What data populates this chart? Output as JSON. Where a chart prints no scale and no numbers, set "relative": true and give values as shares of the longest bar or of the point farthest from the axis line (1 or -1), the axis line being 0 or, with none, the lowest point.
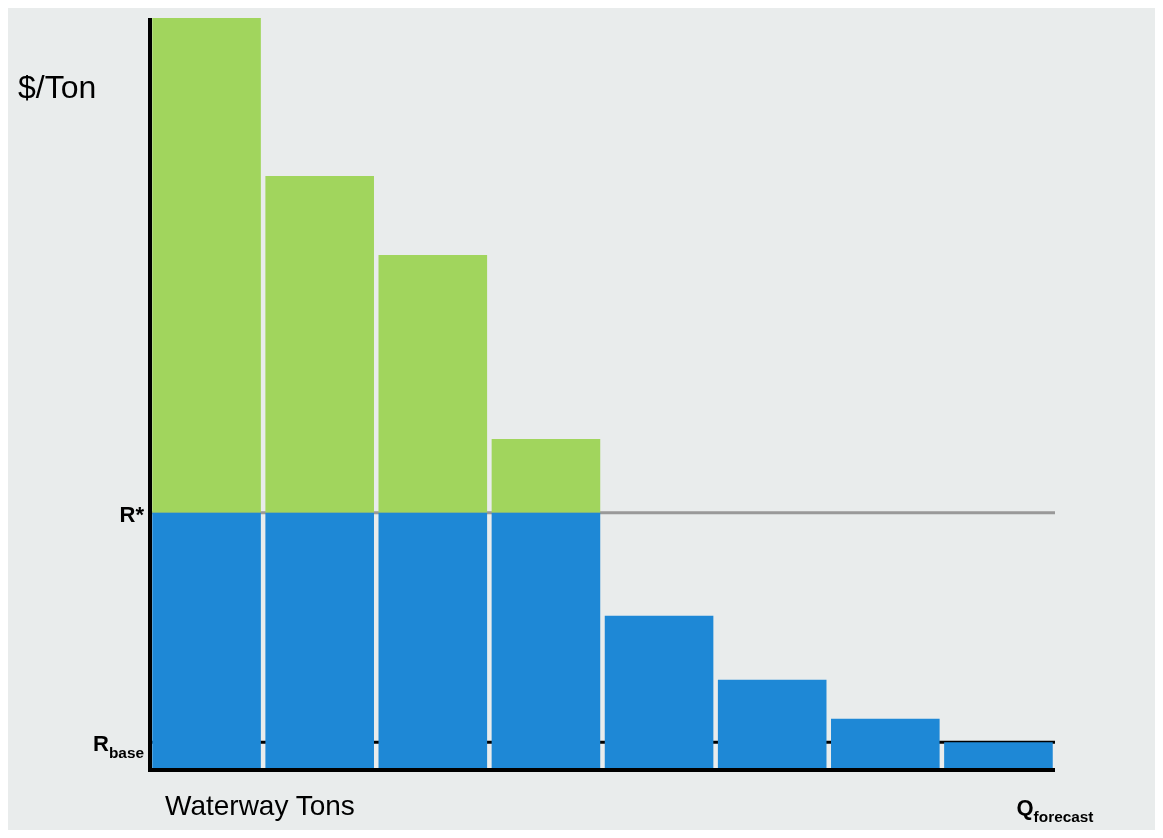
{
  "chart_data": {
    "type": "bar",
    "relative": true,
    "stacked": true,
    "ylabel": "$/Ton",
    "xlabel": "Waterway Tons",
    "categories": [
      null,
      null,
      null,
      null,
      null,
      null,
      null,
      null
    ],
    "series": [
      {
        "color": "#1e88d6",
        "values": [
          0.342,
          0.342,
          0.342,
          0.342,
          0.205,
          0.12,
          0.068,
          0.037
        ]
      },
      {
        "color": "#a1d55d",
        "values": [
          0.658,
          0.448,
          0.343,
          0.098,
          0,
          0,
          0,
          0
        ]
      }
    ],
    "ref_lines": [
      {
        "axis": "y",
        "value": 0.342,
        "label": "R*",
        "color": "#999999"
      },
      {
        "axis": "y",
        "value": 0.037,
        "label": "R$_{base}$",
        "color": "#000000"
      }
    ],
    "annotations": [
      "Q$_{forecast}$"
    ],
    "legend": false
  }
}
